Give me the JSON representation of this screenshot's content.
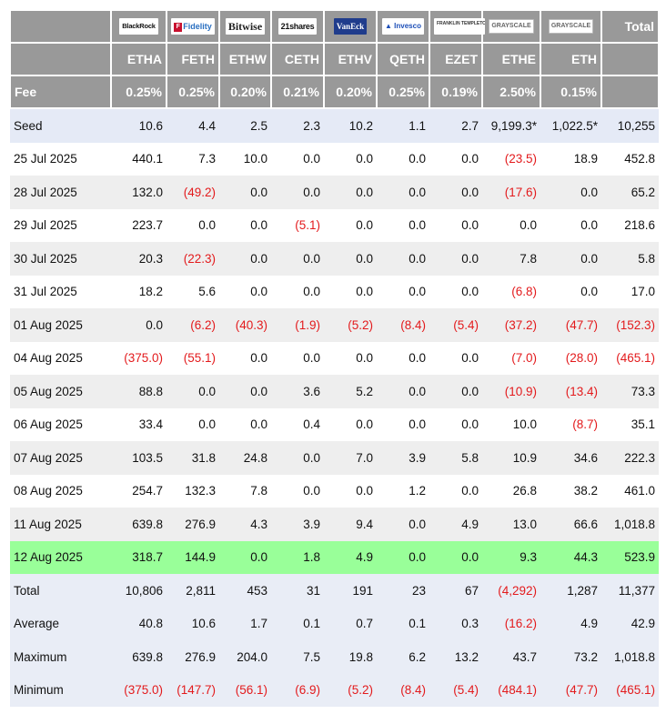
{
  "header": {
    "logos": [
      "BlackRock",
      "Fidelity",
      "Bitwise",
      "21shares",
      "VanEck",
      "Invesco",
      "FRANKLIN TEMPLETON",
      "GRAYSCALE",
      "GRAYSCALE"
    ],
    "total_label": "Total",
    "tickers": [
      "ETHA",
      "FETH",
      "ETHW",
      "CETH",
      "ETHV",
      "QETH",
      "EZET",
      "ETHE",
      "ETH"
    ],
    "fee_label": "Fee",
    "fees": [
      "0.25%",
      "0.25%",
      "0.20%",
      "0.21%",
      "0.20%",
      "0.25%",
      "0.19%",
      "2.50%",
      "0.15%"
    ]
  },
  "rows": [
    {
      "label": "Seed",
      "values": [
        "10.6",
        "4.4",
        "2.5",
        "2.3",
        "10.2",
        "1.1",
        "2.7",
        "9,199.3*",
        "1,022.5*",
        "10,255"
      ]
    },
    {
      "label": "25 Jul 2025",
      "values": [
        "440.1",
        "7.3",
        "10.0",
        "0.0",
        "0.0",
        "0.0",
        "0.0",
        "(23.5)",
        "18.9",
        "452.8"
      ]
    },
    {
      "label": "28 Jul 2025",
      "values": [
        "132.0",
        "(49.2)",
        "0.0",
        "0.0",
        "0.0",
        "0.0",
        "0.0",
        "(17.6)",
        "0.0",
        "65.2"
      ]
    },
    {
      "label": "29 Jul 2025",
      "values": [
        "223.7",
        "0.0",
        "0.0",
        "(5.1)",
        "0.0",
        "0.0",
        "0.0",
        "0.0",
        "0.0",
        "218.6"
      ]
    },
    {
      "label": "30 Jul 2025",
      "values": [
        "20.3",
        "(22.3)",
        "0.0",
        "0.0",
        "0.0",
        "0.0",
        "0.0",
        "7.8",
        "0.0",
        "5.8"
      ]
    },
    {
      "label": "31 Jul 2025",
      "values": [
        "18.2",
        "5.6",
        "0.0",
        "0.0",
        "0.0",
        "0.0",
        "0.0",
        "(6.8)",
        "0.0",
        "17.0"
      ]
    },
    {
      "label": "01 Aug 2025",
      "values": [
        "0.0",
        "(6.2)",
        "(40.3)",
        "(1.9)",
        "(5.2)",
        "(8.4)",
        "(5.4)",
        "(37.2)",
        "(47.7)",
        "(152.3)"
      ]
    },
    {
      "label": "04 Aug 2025",
      "values": [
        "(375.0)",
        "(55.1)",
        "0.0",
        "0.0",
        "0.0",
        "0.0",
        "0.0",
        "(7.0)",
        "(28.0)",
        "(465.1)"
      ]
    },
    {
      "label": "05 Aug 2025",
      "values": [
        "88.8",
        "0.0",
        "0.0",
        "3.6",
        "5.2",
        "0.0",
        "0.0",
        "(10.9)",
        "(13.4)",
        "73.3"
      ]
    },
    {
      "label": "06 Aug 2025",
      "values": [
        "33.4",
        "0.0",
        "0.0",
        "0.4",
        "0.0",
        "0.0",
        "0.0",
        "10.0",
        "(8.7)",
        "35.1"
      ]
    },
    {
      "label": "07 Aug 2025",
      "values": [
        "103.5",
        "31.8",
        "24.8",
        "0.0",
        "7.0",
        "3.9",
        "5.8",
        "10.9",
        "34.6",
        "222.3"
      ]
    },
    {
      "label": "08 Aug 2025",
      "values": [
        "254.7",
        "132.3",
        "7.8",
        "0.0",
        "0.0",
        "1.2",
        "0.0",
        "26.8",
        "38.2",
        "461.0"
      ]
    },
    {
      "label": "11 Aug 2025",
      "values": [
        "639.8",
        "276.9",
        "4.3",
        "3.9",
        "9.4",
        "0.0",
        "4.9",
        "13.0",
        "66.6",
        "1,018.8"
      ]
    },
    {
      "label": "12 Aug 2025",
      "values": [
        "318.7",
        "144.9",
        "0.0",
        "1.8",
        "4.9",
        "0.0",
        "0.0",
        "9.3",
        "44.3",
        "523.9"
      ]
    },
    {
      "label": "Total",
      "values": [
        "10,806",
        "2,811",
        "453",
        "31",
        "191",
        "23",
        "67",
        "(4,292)",
        "1,287",
        "11,377"
      ]
    },
    {
      "label": "Average",
      "values": [
        "40.8",
        "10.6",
        "1.7",
        "0.1",
        "0.7",
        "0.1",
        "0.3",
        "(16.2)",
        "4.9",
        "42.9"
      ]
    },
    {
      "label": "Maximum",
      "values": [
        "639.8",
        "276.9",
        "204.0",
        "7.5",
        "19.8",
        "6.2",
        "13.2",
        "43.7",
        "73.2",
        "1,018.8"
      ]
    },
    {
      "label": "Minimum",
      "values": [
        "(375.0)",
        "(147.7)",
        "(56.1)",
        "(6.9)",
        "(5.2)",
        "(8.4)",
        "(5.4)",
        "(484.1)",
        "(47.7)",
        "(465.1)"
      ]
    }
  ],
  "colors": {
    "header_bg": "#999999",
    "alt_row_bg": "#eeeeee",
    "seed_row_bg": "#e5eaf6",
    "summary_row_bg": "#e9edf6",
    "latest_row_bg": "#99ff99",
    "negative_text": "#e31a1c"
  }
}
